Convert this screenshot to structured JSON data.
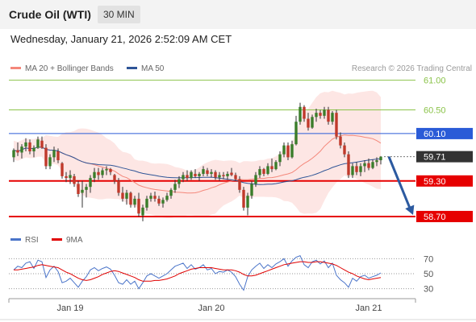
{
  "header": {
    "instrument": "Crude Oil (WTI)",
    "interval": "30 MIN"
  },
  "datetime": "Wednesday, January 21, 2026 2:52:09 AM CET",
  "legend": {
    "ma20": {
      "label": "MA 20 + Bollinger Bands",
      "color": "#f4877a"
    },
    "ma50": {
      "label": "MA 50",
      "color": "#2f5597"
    },
    "rsi": {
      "label": "RSI",
      "color": "#4a74c9"
    },
    "ma9": {
      "label": "9MA",
      "color": "#e00000"
    }
  },
  "copyright": "Research © 2026 Trading Central",
  "chart_data": {
    "type": "line",
    "title": "Crude Oil (WTI)",
    "price_axis": {
      "ylim": [
        58.55,
        61.05
      ],
      "ticks": [
        61.0,
        60.5
      ]
    },
    "levels": [
      {
        "label": "61.00",
        "value": 61.0,
        "kind": "target",
        "color": "#8bc34a"
      },
      {
        "label": "60.50",
        "value": 60.5,
        "kind": "target",
        "color": "#8bc34a"
      },
      {
        "label": "60.10",
        "value": 60.1,
        "kind": "resistance",
        "color": "#2a5bd7"
      },
      {
        "label": "59.71",
        "value": 59.71,
        "kind": "last-price",
        "color": "#333333"
      },
      {
        "label": "59.30",
        "value": 59.3,
        "kind": "support",
        "color": "#e60000"
      },
      {
        "label": "58.70",
        "value": 58.7,
        "kind": "support",
        "color": "#e60000"
      }
    ],
    "last_price": 59.71,
    "forecast_arrow": {
      "from": 59.71,
      "to": 58.7
    },
    "x_labels": [
      {
        "label": "Jan 19",
        "index": 14
      },
      {
        "label": "Jan 20",
        "index": 49
      },
      {
        "label": "Jan 21",
        "index": 88
      }
    ],
    "candles": [
      [
        59.7,
        59.85,
        59.62,
        59.82
      ],
      [
        59.82,
        59.95,
        59.72,
        59.78
      ],
      [
        59.78,
        59.92,
        59.68,
        59.88
      ],
      [
        59.88,
        60.02,
        59.8,
        59.95
      ],
      [
        59.95,
        60.0,
        59.75,
        59.8
      ],
      [
        59.8,
        59.9,
        59.7,
        59.86
      ],
      [
        59.86,
        60.05,
        59.84,
        60.0
      ],
      [
        59.98,
        60.05,
        59.84,
        59.86
      ],
      [
        59.86,
        59.92,
        59.5,
        59.55
      ],
      [
        59.55,
        59.75,
        59.5,
        59.7
      ],
      [
        59.7,
        59.88,
        59.62,
        59.82
      ],
      [
        59.8,
        59.85,
        59.6,
        59.65
      ],
      [
        59.6,
        59.62,
        59.34,
        59.38
      ],
      [
        59.38,
        59.45,
        59.28,
        59.35
      ],
      [
        59.35,
        59.48,
        59.25,
        59.4
      ],
      [
        59.38,
        59.42,
        59.2,
        59.25
      ],
      [
        59.25,
        59.3,
        59.03,
        59.08
      ],
      [
        59.1,
        59.3,
        58.85,
        59.15
      ],
      [
        59.15,
        59.25,
        59.02,
        59.2
      ],
      [
        59.2,
        59.4,
        59.1,
        59.35
      ],
      [
        59.35,
        59.52,
        59.28,
        59.45
      ],
      [
        59.45,
        59.52,
        59.32,
        59.4
      ],
      [
        59.4,
        59.52,
        59.35,
        59.48
      ],
      [
        59.48,
        59.55,
        59.4,
        59.5
      ],
      [
        59.5,
        59.52,
        59.4,
        59.45
      ],
      [
        59.4,
        59.42,
        59.25,
        59.3
      ],
      [
        59.3,
        59.35,
        59.05,
        59.1
      ],
      [
        59.1,
        59.2,
        58.95,
        59.0
      ],
      [
        59.0,
        59.15,
        58.9,
        59.1
      ],
      [
        59.1,
        59.12,
        58.85,
        58.9
      ],
      [
        58.9,
        59.05,
        58.85,
        59.0
      ],
      [
        59.0,
        59.1,
        58.7,
        58.75
      ],
      [
        58.72,
        58.9,
        58.62,
        58.85
      ],
      [
        58.85,
        59.05,
        58.8,
        59.0
      ],
      [
        59.0,
        59.1,
        58.95,
        59.05
      ],
      [
        59.05,
        59.12,
        58.95,
        59.0
      ],
      [
        59.0,
        59.05,
        58.88,
        58.92
      ],
      [
        58.92,
        59.02,
        58.85,
        58.98
      ],
      [
        58.98,
        59.1,
        58.95,
        59.05
      ],
      [
        59.05,
        59.18,
        59.0,
        59.15
      ],
      [
        59.15,
        59.32,
        59.1,
        59.25
      ],
      [
        59.25,
        59.38,
        59.18,
        59.33
      ],
      [
        59.33,
        59.45,
        59.28,
        59.4
      ],
      [
        59.4,
        59.48,
        59.3,
        59.35
      ],
      [
        59.35,
        59.48,
        59.32,
        59.45
      ],
      [
        59.42,
        59.5,
        59.35,
        59.38
      ],
      [
        59.38,
        59.45,
        59.3,
        59.42
      ],
      [
        59.42,
        59.55,
        59.38,
        59.5
      ],
      [
        59.48,
        59.52,
        59.38,
        59.42
      ],
      [
        59.42,
        59.5,
        59.36,
        59.45
      ],
      [
        59.45,
        59.48,
        59.32,
        59.36
      ],
      [
        59.36,
        59.45,
        59.3,
        59.4
      ],
      [
        59.4,
        59.45,
        59.33,
        59.38
      ],
      [
        59.38,
        59.46,
        59.32,
        59.42
      ],
      [
        59.44,
        59.52,
        59.38,
        59.4
      ],
      [
        59.4,
        59.44,
        59.3,
        59.33
      ],
      [
        59.33,
        59.38,
        59.1,
        59.15
      ],
      [
        59.15,
        59.2,
        58.8,
        58.85
      ],
      [
        58.85,
        59.1,
        58.72,
        59.05
      ],
      [
        59.05,
        59.3,
        59.0,
        59.25
      ],
      [
        59.25,
        59.45,
        59.2,
        59.4
      ],
      [
        59.4,
        59.55,
        59.35,
        59.5
      ],
      [
        59.5,
        59.52,
        59.38,
        59.42
      ],
      [
        59.42,
        59.6,
        59.4,
        59.55
      ],
      [
        59.55,
        59.68,
        59.45,
        59.5
      ],
      [
        59.5,
        59.65,
        59.48,
        59.62
      ],
      [
        59.62,
        59.8,
        59.55,
        59.75
      ],
      [
        59.75,
        59.95,
        59.7,
        59.9
      ],
      [
        59.9,
        59.95,
        59.65,
        59.7
      ],
      [
        59.7,
        59.98,
        59.68,
        59.92
      ],
      [
        59.92,
        60.4,
        59.9,
        60.3
      ],
      [
        60.3,
        60.62,
        60.25,
        60.55
      ],
      [
        60.55,
        60.58,
        60.3,
        60.35
      ],
      [
        60.35,
        60.45,
        60.15,
        60.2
      ],
      [
        60.2,
        60.42,
        60.18,
        60.38
      ],
      [
        60.38,
        60.52,
        60.3,
        60.45
      ],
      [
        60.45,
        60.5,
        60.35,
        60.4
      ],
      [
        60.4,
        60.55,
        60.35,
        60.5
      ],
      [
        60.5,
        60.55,
        60.25,
        60.3
      ],
      [
        60.3,
        60.48,
        60.25,
        60.45
      ],
      [
        60.45,
        60.5,
        60.0,
        60.05
      ],
      [
        60.05,
        60.12,
        59.85,
        59.9
      ],
      [
        59.9,
        59.95,
        59.7,
        59.75
      ],
      [
        59.75,
        59.8,
        59.35,
        59.4
      ],
      [
        59.4,
        59.6,
        59.35,
        59.55
      ],
      [
        59.55,
        59.62,
        59.4,
        59.45
      ],
      [
        59.45,
        59.6,
        59.38,
        59.55
      ],
      [
        59.55,
        59.65,
        59.45,
        59.6
      ],
      [
        59.6,
        59.68,
        59.48,
        59.52
      ],
      [
        59.52,
        59.66,
        59.5,
        59.62
      ],
      [
        59.62,
        59.7,
        59.55,
        59.65
      ],
      [
        59.65,
        59.72,
        59.58,
        59.71
      ]
    ],
    "rsi_axis": {
      "ylim": [
        20,
        80
      ],
      "ticks": [
        70,
        50,
        30
      ]
    },
    "rsi": [
      55,
      60,
      58,
      64,
      66,
      57,
      68,
      66,
      45,
      55,
      60,
      53,
      38,
      40,
      44,
      38,
      32,
      40,
      46,
      55,
      58,
      54,
      57,
      59,
      56,
      48,
      38,
      36,
      42,
      36,
      40,
      30,
      38,
      47,
      50,
      47,
      44,
      47,
      50,
      55,
      60,
      62,
      64,
      57,
      62,
      56,
      58,
      62,
      55,
      57,
      50,
      53,
      52,
      55,
      52,
      46,
      36,
      28,
      46,
      55,
      60,
      64,
      57,
      62,
      58,
      63,
      66,
      70,
      60,
      67,
      72,
      74,
      62,
      58,
      66,
      68,
      63,
      67,
      58,
      64,
      48,
      42,
      38,
      32,
      44,
      40,
      46,
      48,
      44,
      46,
      48,
      51
    ],
    "rsi_ma9": [
      55,
      55,
      56,
      57,
      58,
      59,
      61,
      62,
      61,
      60,
      59,
      58,
      55,
      52,
      50,
      47,
      44,
      42,
      41,
      42,
      44,
      46,
      49,
      51,
      53,
      54,
      53,
      51,
      49,
      47,
      45,
      42,
      40,
      40,
      40,
      41,
      41,
      42,
      43,
      45,
      47,
      50,
      52,
      54,
      56,
      57,
      58,
      58,
      58,
      58,
      57,
      56,
      55,
      55,
      55,
      54,
      52,
      49,
      47,
      47,
      48,
      50,
      52,
      54,
      56,
      58,
      60,
      62,
      63,
      64,
      65,
      66,
      66,
      65,
      65,
      66,
      66,
      65,
      64,
      63,
      61,
      58,
      55,
      52,
      50,
      47,
      45,
      43,
      42,
      43,
      44,
      45
    ]
  }
}
